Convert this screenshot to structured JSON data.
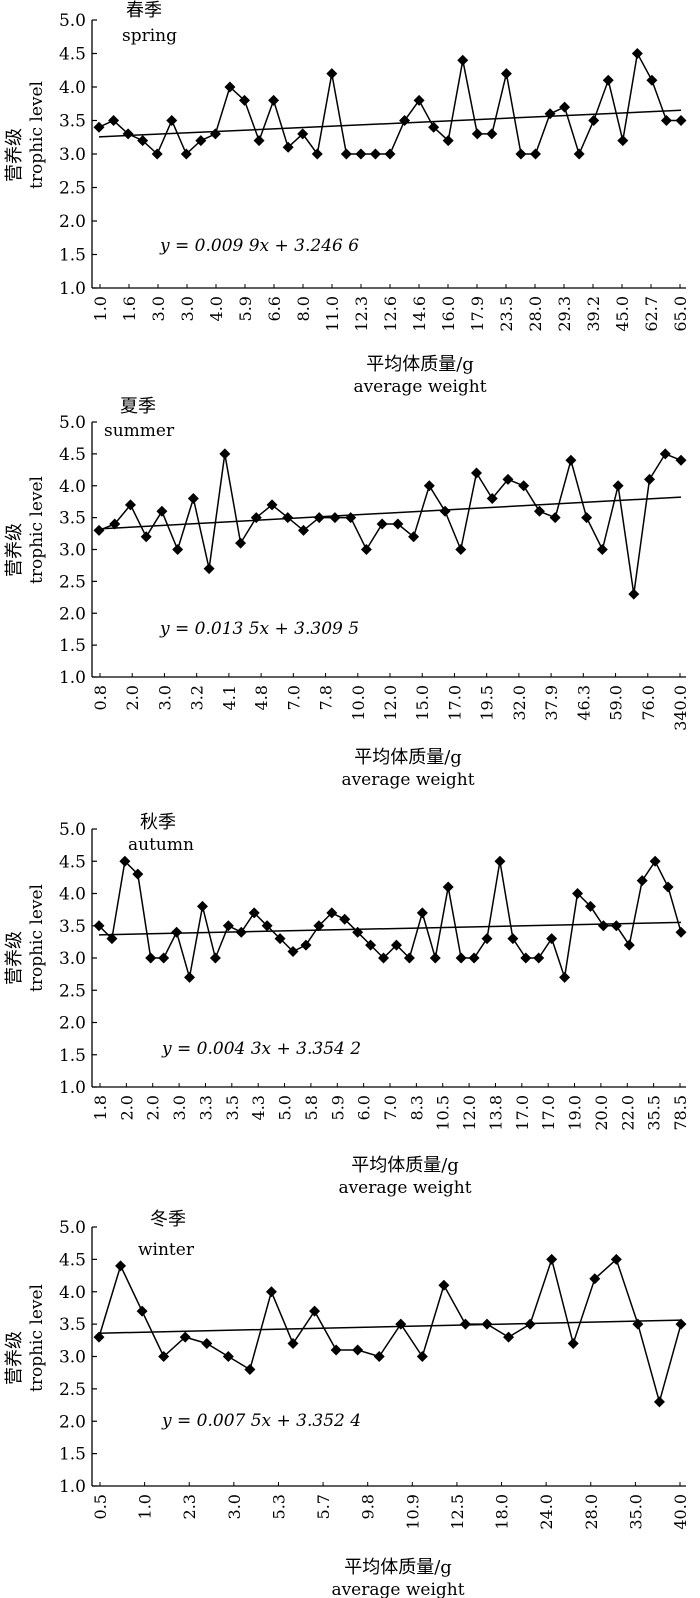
{
  "chart_data": [
    {
      "type": "line",
      "title": "春季",
      "subtitle": "spring",
      "ylabel_cn": "营养级",
      "ylabel": "trophic level",
      "xlabel_cn": "平均体质量/g",
      "xlabel": "average weight",
      "equation": "y = 0.009 9x + 3.246 6",
      "trendline": {
        "slope": 0.0099,
        "intercept": 3.2466
      },
      "ylim": [
        1.0,
        5.0
      ],
      "yticks": [
        "1.0",
        "1.5",
        "2.0",
        "2.5",
        "3.0",
        "3.5",
        "4.0",
        "4.5",
        "5.0"
      ],
      "xtick_labels": [
        "1.0",
        "1.6",
        "3.0",
        "3.0",
        "4.0",
        "5.9",
        "6.6",
        "8.0",
        "11.0",
        "12.3",
        "12.6",
        "14.6",
        "16.0",
        "17.9",
        "23.5",
        "28.0",
        "29.3",
        "39.2",
        "45.0",
        "62.7",
        "65.0"
      ],
      "values": [
        3.4,
        3.5,
        3.3,
        3.2,
        3.0,
        3.5,
        3.0,
        3.2,
        3.3,
        4.0,
        3.8,
        3.2,
        3.8,
        3.1,
        3.3,
        3.0,
        4.2,
        3.0,
        3.0,
        3.0,
        3.0,
        3.5,
        3.8,
        3.4,
        3.2,
        4.4,
        3.3,
        3.3,
        4.2,
        3.0,
        3.0,
        3.6,
        3.7,
        3.0,
        3.5,
        4.1,
        3.2,
        4.5,
        4.1,
        3.5,
        3.5
      ],
      "grid": false
    },
    {
      "type": "line",
      "title": "夏季",
      "subtitle": "summer",
      "ylabel_cn": "营养级",
      "ylabel": "trophic level",
      "xlabel_cn": "平均体质量/g",
      "xlabel": "average weight",
      "equation": "y = 0.013 5x + 3.309 5",
      "trendline": {
        "slope": 0.0135,
        "intercept": 3.3095
      },
      "ylim": [
        1.0,
        5.0
      ],
      "yticks": [
        "1.0",
        "1.5",
        "2.0",
        "2.5",
        "3.0",
        "3.5",
        "4.0",
        "4.5",
        "5.0"
      ],
      "xtick_labels": [
        "0.8",
        "2.0",
        "3.0",
        "3.2",
        "4.1",
        "4.8",
        "7.0",
        "7.8",
        "10.0",
        "12.0",
        "15.0",
        "17.0",
        "19.5",
        "32.0",
        "37.9",
        "46.3",
        "59.0",
        "76.0",
        "340.0"
      ],
      "values": [
        3.3,
        3.4,
        3.7,
        3.2,
        3.6,
        3.0,
        3.8,
        2.7,
        4.5,
        3.1,
        3.5,
        3.7,
        3.5,
        3.3,
        3.5,
        3.5,
        3.5,
        3.0,
        3.4,
        3.4,
        3.2,
        4.0,
        3.6,
        3.0,
        4.2,
        3.8,
        4.1,
        4.0,
        3.6,
        3.5,
        4.4,
        3.5,
        3.0,
        4.0,
        2.3,
        4.1,
        4.5,
        4.4
      ],
      "grid": false
    },
    {
      "type": "line",
      "title": "秋季",
      "subtitle": "autumn",
      "ylabel_cn": "营养级",
      "ylabel": "trophic level",
      "xlabel_cn": "平均体质量/g",
      "xlabel": "average weight",
      "equation": "y = 0.004 3x + 3.354 2",
      "trendline": {
        "slope": 0.0043,
        "intercept": 3.3542
      },
      "ylim": [
        1.0,
        5.0
      ],
      "yticks": [
        "1.0",
        "1.5",
        "2.0",
        "2.5",
        "3.0",
        "3.5",
        "4.0",
        "4.5",
        "5.0"
      ],
      "xtick_labels": [
        "1.8",
        "2.0",
        "2.0",
        "3.0",
        "3.3",
        "3.5",
        "4.3",
        "5.0",
        "5.8",
        "5.9",
        "6.0",
        "7.0",
        "8.3",
        "10.5",
        "12.0",
        "13.8",
        "17.0",
        "17.0",
        "19.0",
        "20.0",
        "22.0",
        "35.5",
        "78.5"
      ],
      "values": [
        3.5,
        3.3,
        4.5,
        4.3,
        3.0,
        3.0,
        3.4,
        2.7,
        3.8,
        3.0,
        3.5,
        3.4,
        3.7,
        3.5,
        3.3,
        3.1,
        3.2,
        3.5,
        3.7,
        3.6,
        3.4,
        3.2,
        3.0,
        3.2,
        3.0,
        3.7,
        3.0,
        4.1,
        3.0,
        3.0,
        3.3,
        4.5,
        3.3,
        3.0,
        3.0,
        3.3,
        2.7,
        4.0,
        3.8,
        3.5,
        3.5,
        3.2,
        4.2,
        4.5,
        4.1,
        3.4
      ],
      "grid": false
    },
    {
      "type": "line",
      "title": "冬季",
      "subtitle": "winter",
      "ylabel_cn": "营养级",
      "ylabel": "trophic level",
      "xlabel_cn": "平均体质量/g",
      "xlabel": "average weight",
      "equation": "y = 0.007 5x + 3.352 4",
      "trendline": {
        "slope": 0.0075,
        "intercept": 3.3524
      },
      "ylim": [
        1.0,
        5.0
      ],
      "yticks": [
        "1.0",
        "1.5",
        "2.0",
        "2.5",
        "3.0",
        "3.5",
        "4.0",
        "4.5",
        "5.0"
      ],
      "xtick_labels": [
        "0.5",
        "1.0",
        "2.3",
        "3.0",
        "5.3",
        "5.7",
        "9.8",
        "10.9",
        "12.5",
        "18.0",
        "24.0",
        "28.0",
        "35.0",
        "40.0"
      ],
      "values": [
        3.3,
        4.4,
        3.7,
        3.0,
        3.3,
        3.2,
        3.0,
        2.8,
        4.0,
        3.2,
        3.7,
        3.1,
        3.1,
        3.0,
        3.5,
        3.0,
        4.1,
        3.5,
        3.5,
        3.3,
        3.5,
        4.5,
        3.2,
        4.2,
        4.5,
        3.5,
        2.3,
        3.5
      ],
      "grid": false
    }
  ]
}
